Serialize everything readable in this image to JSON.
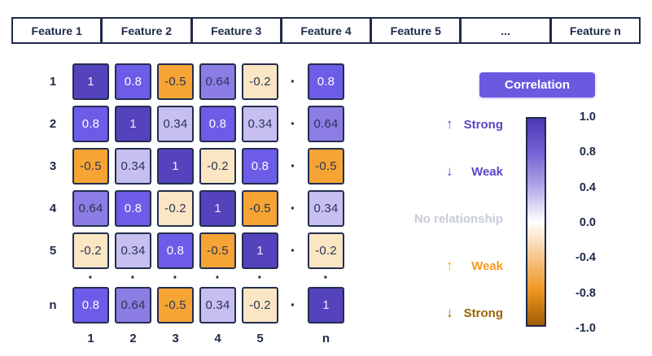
{
  "header": {
    "features": [
      "Feature 1",
      "Feature 2",
      "Feature 3",
      "Feature 4",
      "Feature 5",
      "...",
      "Feature n"
    ]
  },
  "matrix": {
    "dot": "·",
    "row_labels": [
      "1",
      "2",
      "3",
      "4",
      "5",
      "n"
    ],
    "col_labels": [
      "1",
      "2",
      "3",
      "4",
      "5",
      "n"
    ],
    "rows": [
      {
        "cells": [
          {
            "v": "1",
            "bg": "#5443BD",
            "fg": "#EFEBFC"
          },
          {
            "v": "0.8",
            "bg": "#6C5CE8",
            "fg": "#FFFFFF"
          },
          {
            "v": "-0.5",
            "bg": "#F6A434",
            "fg": "#2B3356"
          },
          {
            "v": "0.64",
            "bg": "#8B7DE3",
            "fg": "#2B3356"
          },
          {
            "v": "-0.2",
            "bg": "#FBE6C3",
            "fg": "#2B3356"
          },
          {
            "v": "0.8",
            "bg": "#6C5CE8",
            "fg": "#FFFFFF"
          }
        ]
      },
      {
        "cells": [
          {
            "v": "0.8",
            "bg": "#6C5CE8",
            "fg": "#FFFFFF"
          },
          {
            "v": "1",
            "bg": "#5443BD",
            "fg": "#EFEBFC"
          },
          {
            "v": "0.34",
            "bg": "#C6BFEF",
            "fg": "#2B3356"
          },
          {
            "v": "0.8",
            "bg": "#6C5CE8",
            "fg": "#FFFFFF"
          },
          {
            "v": "0.34",
            "bg": "#C6BFEF",
            "fg": "#2B3356"
          },
          {
            "v": "0.64",
            "bg": "#8B7DE3",
            "fg": "#2B3356"
          }
        ]
      },
      {
        "cells": [
          {
            "v": "-0.5",
            "bg": "#F6A434",
            "fg": "#2B3356"
          },
          {
            "v": "0.34",
            "bg": "#C6BFEF",
            "fg": "#2B3356"
          },
          {
            "v": "1",
            "bg": "#5443BD",
            "fg": "#EFEBFC"
          },
          {
            "v": "-0.2",
            "bg": "#FBE6C3",
            "fg": "#2B3356"
          },
          {
            "v": "0.8",
            "bg": "#6C5CE8",
            "fg": "#FFFFFF"
          },
          {
            "v": "-0.5",
            "bg": "#F6A434",
            "fg": "#2B3356"
          }
        ]
      },
      {
        "cells": [
          {
            "v": "0.64",
            "bg": "#8B7DE3",
            "fg": "#2B3356"
          },
          {
            "v": "0.8",
            "bg": "#6C5CE8",
            "fg": "#FFFFFF"
          },
          {
            "v": "-0.2",
            "bg": "#FBE6C3",
            "fg": "#2B3356"
          },
          {
            "v": "1",
            "bg": "#5443BD",
            "fg": "#EFEBFC"
          },
          {
            "v": "-0.5",
            "bg": "#F6A434",
            "fg": "#2B3356"
          },
          {
            "v": "0.34",
            "bg": "#C6BFEF",
            "fg": "#2B3356"
          }
        ]
      },
      {
        "cells": [
          {
            "v": "-0.2",
            "bg": "#FBE6C3",
            "fg": "#2B3356"
          },
          {
            "v": "0.34",
            "bg": "#C6BFEF",
            "fg": "#2B3356"
          },
          {
            "v": "0.8",
            "bg": "#6C5CE8",
            "fg": "#FFFFFF"
          },
          {
            "v": "-0.5",
            "bg": "#F6A434",
            "fg": "#2B3356"
          },
          {
            "v": "1",
            "bg": "#5443BD",
            "fg": "#EFEBFC"
          },
          {
            "v": "-0.2",
            "bg": "#FBE6C3",
            "fg": "#2B3356"
          }
        ]
      },
      {
        "cells": [
          {
            "v": "0.8",
            "bg": "#6C5CE8",
            "fg": "#FFFFFF"
          },
          {
            "v": "0.64",
            "bg": "#8B7DE3",
            "fg": "#2B3356"
          },
          {
            "v": "-0.5",
            "bg": "#F6A434",
            "fg": "#2B3356"
          },
          {
            "v": "0.34",
            "bg": "#C6BFEF",
            "fg": "#2B3356"
          },
          {
            "v": "-0.2",
            "bg": "#FBE6C3",
            "fg": "#2B3356"
          },
          {
            "v": "1",
            "bg": "#5443BD",
            "fg": "#EFEBFC"
          }
        ]
      }
    ]
  },
  "legend": {
    "title": "Correlation",
    "accent_color": "#6A5AE0",
    "items": [
      {
        "arrow": "↑",
        "label": "Strong",
        "color": "#5B45C8"
      },
      {
        "arrow": "↓",
        "label": "Weak",
        "color": "#5B45C8"
      },
      {
        "arrow": "",
        "label": "No relationship",
        "color": "#C7CBD9"
      },
      {
        "arrow": "↑",
        "label": "Weak",
        "color": "#F59A1D"
      },
      {
        "arrow": "↓",
        "label": "Strong",
        "color": "#9A6403"
      }
    ],
    "ticks": [
      "1.0",
      "0.8",
      "0.4",
      "0.0",
      "-0.4",
      "-0.8",
      "-1.0"
    ]
  },
  "chart_data": {
    "type": "heatmap",
    "title": "Correlation",
    "rows": [
      "1",
      "2",
      "3",
      "4",
      "5",
      "n"
    ],
    "cols": [
      "1",
      "2",
      "3",
      "4",
      "5",
      "n"
    ],
    "values": [
      [
        1,
        0.8,
        -0.5,
        0.64,
        -0.2,
        0.8
      ],
      [
        0.8,
        1,
        0.34,
        0.8,
        0.34,
        0.64
      ],
      [
        -0.5,
        0.34,
        1,
        -0.2,
        0.8,
        -0.5
      ],
      [
        0.64,
        0.8,
        -0.2,
        1,
        -0.5,
        0.34
      ],
      [
        -0.2,
        0.34,
        0.8,
        -0.5,
        1,
        -0.2
      ],
      [
        0.8,
        0.64,
        -0.5,
        0.34,
        -0.2,
        1
      ]
    ],
    "colorbar": {
      "range": [
        -1.0,
        1.0
      ],
      "ticks": [
        1.0,
        0.8,
        0.4,
        0.0,
        -0.4,
        -0.8,
        -1.0
      ],
      "positive_color": "#4B37B3",
      "zero_color": "#FFFFFF",
      "negative_color": "#9F5B04",
      "annotations": [
        "Strong",
        "Weak",
        "No relationship",
        "Weak",
        "Strong"
      ]
    }
  }
}
